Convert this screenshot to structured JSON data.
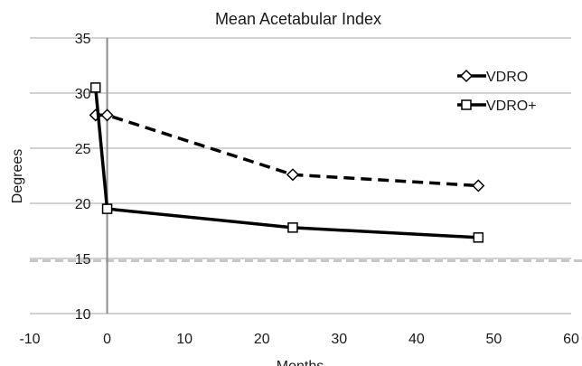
{
  "chart_data": {
    "type": "line",
    "title": "Mean Acetabular Index",
    "xlabel": "Months",
    "ylabel": "Degrees",
    "xlim": [
      -10,
      60
    ],
    "ylim": [
      10,
      35
    ],
    "x_ticks": [
      "-10",
      "0",
      "10",
      "20",
      "30",
      "40",
      "50",
      "60"
    ],
    "y_ticks": [
      "10",
      "15",
      "20",
      "25",
      "30",
      "35"
    ],
    "grid": true,
    "legend_position": "top-right",
    "reference_line": {
      "y": 14.8,
      "style": "dashed",
      "color": "#c8c8c8"
    },
    "series": [
      {
        "name": "VDRO",
        "marker": "diamond",
        "line_style": "dashed",
        "color": "#000000",
        "points": [
          [
            -1.5,
            28
          ],
          [
            0,
            28
          ],
          [
            24,
            22.6
          ],
          [
            48,
            21.6
          ]
        ]
      },
      {
        "name": "VDRO+",
        "marker": "square",
        "line_style": "solid",
        "color": "#000000",
        "points": [
          [
            -1.5,
            30.5
          ],
          [
            0,
            19.5
          ],
          [
            24,
            17.8
          ],
          [
            48,
            16.9
          ]
        ]
      }
    ]
  }
}
